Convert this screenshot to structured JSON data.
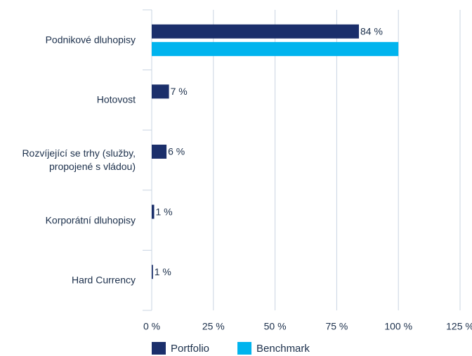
{
  "chart_data": {
    "type": "bar",
    "orientation": "horizontal",
    "categories": [
      "Podnikové dluhopisy",
      "Hotovost",
      "Rozvíjející se trhy (služby, propojené s vládou)",
      "Korporátní dluhopisy",
      "Hard Currency"
    ],
    "series": [
      {
        "name": "Portfolio",
        "color": "#1b2f6b",
        "values": [
          84,
          7,
          6,
          1,
          0.5
        ],
        "value_labels": [
          "84 %",
          "7 %",
          "6 %",
          "1 %",
          "1 %"
        ]
      },
      {
        "name": "Benchmark",
        "color": "#00b4ee",
        "values": [
          100,
          0,
          0,
          0,
          0
        ]
      }
    ],
    "xlim": [
      0,
      125
    ],
    "xticks": [
      {
        "value": 0,
        "label": "0 %"
      },
      {
        "value": 25,
        "label": "25 %"
      },
      {
        "value": 50,
        "label": "50 %"
      },
      {
        "value": 75,
        "label": "75 %"
      },
      {
        "value": 100,
        "label": "100 %"
      },
      {
        "value": 125,
        "label": "125 %"
      }
    ],
    "grid": true,
    "legend": "bottom"
  }
}
